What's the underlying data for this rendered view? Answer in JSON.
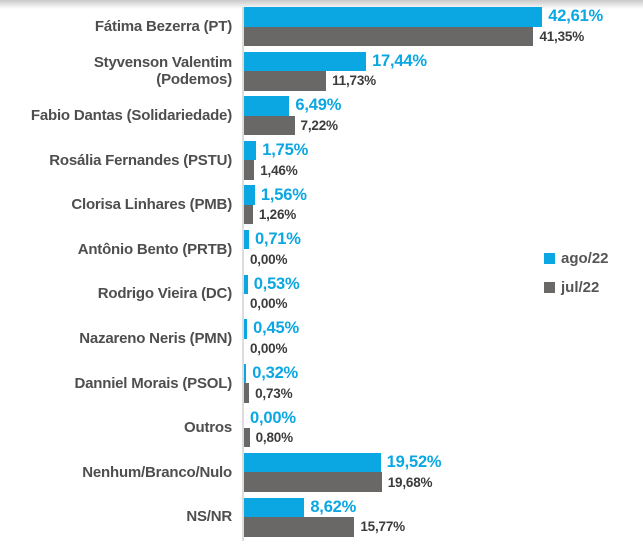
{
  "chart_data": {
    "type": "bar",
    "orientation": "horizontal",
    "title": "",
    "xlabel": "",
    "ylabel": "",
    "value_suffix": "%",
    "decimal_separator": ",",
    "xlim": [
      0,
      45
    ],
    "grid": false,
    "categories": [
      "Fátima Bezerra (PT)",
      "Styvenson Valentim\n(Podemos)",
      "Fabio Dantas (Solidariedade)",
      "Rosália Fernandes (PSTU)",
      "Clorisa Linhares (PMB)",
      "Antônio Bento (PRTB)",
      "Rodrigo Vieira (DC)",
      "Nazareno Neris (PMN)",
      "Danniel Morais (PSOL)",
      "Outros",
      "Nenhum/Branco/Nulo",
      "NS/NR"
    ],
    "series": [
      {
        "name": "ago/22",
        "color": "#0ba7e2",
        "values": [
          42.61,
          17.44,
          6.49,
          1.75,
          1.56,
          0.71,
          0.53,
          0.45,
          0.32,
          0.0,
          19.52,
          8.62
        ],
        "labels": [
          "42,61%",
          "17,44%",
          "6,49%",
          "1,75%",
          "1,56%",
          "0,71%",
          "0,53%",
          "0,45%",
          "0,32%",
          "0,00%",
          "19,52%",
          "8,62%"
        ]
      },
      {
        "name": "jul/22",
        "color": "#6a6767",
        "values": [
          41.35,
          11.73,
          7.22,
          1.46,
          1.26,
          0.0,
          0.0,
          0.0,
          0.73,
          0.8,
          19.68,
          15.77
        ],
        "labels": [
          "41,35%",
          "11,73%",
          "7,22%",
          "1,46%",
          "1,26%",
          "0,00%",
          "0,00%",
          "0,00%",
          "0,73%",
          "0,80%",
          "19,68%",
          "15,77%"
        ]
      }
    ],
    "legend": {
      "position": "right",
      "entries": [
        "ago/22",
        "jul/22"
      ]
    }
  },
  "style": {
    "bar_blue": "#0ba7e2",
    "bar_gray": "#6a6767",
    "category_text": "#4e4e4e",
    "value_text_dark": "#3c3c3c",
    "axis_line": "#dcdcdc"
  }
}
